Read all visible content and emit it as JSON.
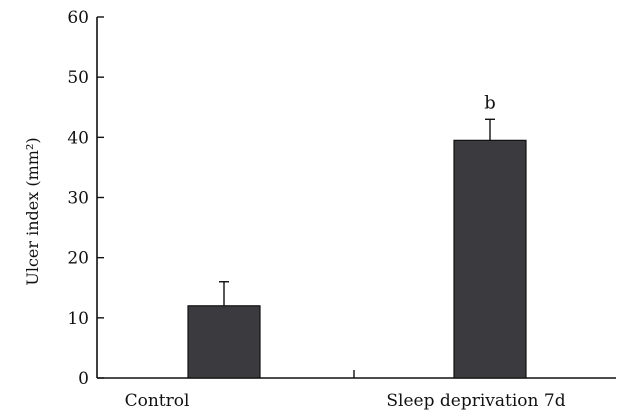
{
  "chart_data": {
    "type": "bar",
    "title": "",
    "xlabel": "",
    "ylabel": "Ulcer index (mm²)",
    "categories": [
      "Control",
      "Sleep deprivation 7d"
    ],
    "values": [
      12,
      39.5
    ],
    "error": [
      4,
      3.5
    ],
    "annotations": [
      "",
      "b"
    ],
    "ylim": [
      0,
      60
    ],
    "yticks": [
      0,
      10,
      20,
      30,
      40,
      50,
      60
    ],
    "grid": false,
    "bar_color": "#3b3b3f"
  }
}
